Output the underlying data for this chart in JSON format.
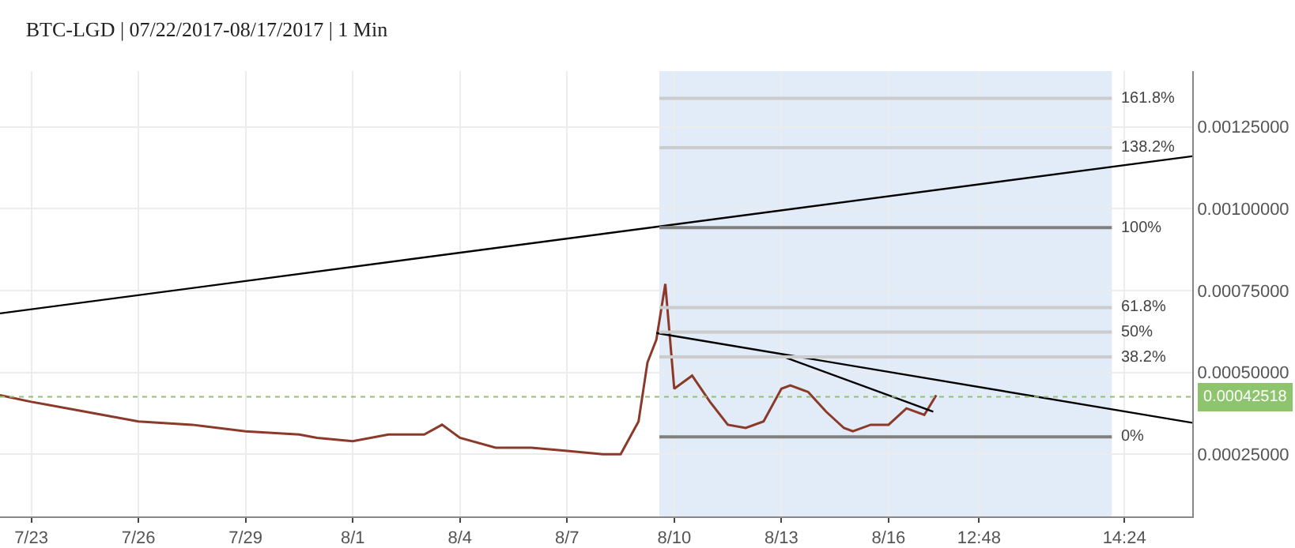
{
  "chart_data": {
    "type": "line",
    "title": "BTC-LGD | 07/22/2017-08/17/2017 | 1 Min",
    "x": [
      "2017-07-22T03:00",
      "2017-07-23",
      "2017-07-24T12:00",
      "2017-07-26",
      "2017-07-27T12:00",
      "2017-07-29",
      "2017-07-30T12:00",
      "2017-07-31",
      "2017-08-01",
      "2017-08-02",
      "2017-08-03",
      "2017-08-03T12:00",
      "2017-08-04",
      "2017-08-05",
      "2017-08-06",
      "2017-08-07",
      "2017-08-08",
      "2017-08-08T12:00",
      "2017-08-09T00:00",
      "2017-08-09T06:00",
      "2017-08-09T12:00",
      "2017-08-09T18:00",
      "2017-08-10T00:00",
      "2017-08-10T12:00",
      "2017-08-11",
      "2017-08-11T12:00",
      "2017-08-12",
      "2017-08-12T12:00",
      "2017-08-13",
      "2017-08-13T06:00",
      "2017-08-13T18:00",
      "2017-08-14T06:00",
      "2017-08-14T18:00",
      "2017-08-15",
      "2017-08-15T12:00",
      "2017-08-16",
      "2017-08-16T12:00",
      "2017-08-17",
      "2017-08-17T08:00"
    ],
    "series": [
      {
        "color": "#8b3a2a",
        "values": [
          0.00043,
          0.00041,
          0.00038,
          0.00035,
          0.00034,
          0.00032,
          0.00031,
          0.0003,
          0.00029,
          0.00031,
          0.00031,
          0.00034,
          0.0003,
          0.00027,
          0.00027,
          0.00026,
          0.00025,
          0.00025,
          0.00035,
          0.00053,
          0.0006,
          0.00077,
          0.00045,
          0.00049,
          0.00041,
          0.00034,
          0.00033,
          0.00035,
          0.00045,
          0.00046,
          0.00044,
          0.00038,
          0.00033,
          0.00032,
          0.00034,
          0.00034,
          0.00039,
          0.00037,
          0.00043
        ]
      },
      {
        "color": "#000000",
        "x": [
          "2017-07-22T03:00",
          "2017-08-24T12:00"
        ],
        "values": [
          0.00068,
          0.00116
        ]
      },
      {
        "color": "#000000",
        "x": [
          "2017-08-09T12:00",
          "2017-08-24T12:00"
        ],
        "values": [
          0.00062,
          0.000346
        ]
      },
      {
        "color": "#000000",
        "x": [
          "2017-08-13",
          "2017-08-17T06:00"
        ],
        "values": [
          0.00055,
          0.00038
        ]
      }
    ],
    "xlim": [
      "2017-07-22T03:00",
      "2017-08-24T12:00"
    ],
    "xticks": [
      {
        "value": "2017-07-23",
        "label": "7/23"
      },
      {
        "value": "2017-07-26",
        "label": "7/26"
      },
      {
        "value": "2017-07-29",
        "label": "7/29"
      },
      {
        "value": "2017-08-01",
        "label": "8/1"
      },
      {
        "value": "2017-08-04",
        "label": "8/4"
      },
      {
        "value": "2017-08-07",
        "label": "8/7"
      },
      {
        "value": "2017-08-10",
        "label": "8/10"
      },
      {
        "value": "2017-08-13",
        "label": "8/13"
      },
      {
        "value": "2017-08-16",
        "label": "8/16"
      },
      {
        "value": "2017-08-18T12:48",
        "label": "12:48"
      },
      {
        "value": "2017-08-22T14:24",
        "label": "14:24"
      }
    ],
    "ylim": [
      6e-05,
      0.00142
    ],
    "yticks": [
      {
        "value": 0.00025,
        "label": "0.00025000"
      },
      {
        "value": 0.0005,
        "label": "0.00050000"
      },
      {
        "value": 0.00075,
        "label": "0.00075000"
      },
      {
        "value": 0.001,
        "label": "0.00100000"
      },
      {
        "value": 0.00125,
        "label": "0.00125000"
      }
    ],
    "bands": [
      {
        "axis": "x",
        "from": "2017-08-09T14:00",
        "to": "2017-08-22T06:00",
        "color": "#e2ebf8"
      }
    ],
    "ref_lines": [
      {
        "axis": "y",
        "value": 0.001337,
        "color": "#cccccc"
      },
      {
        "axis": "y",
        "value": 0.001186,
        "color": "#cccccc"
      },
      {
        "axis": "y",
        "value": 0.000942,
        "color": "#808080"
      },
      {
        "axis": "y",
        "value": 0.000698,
        "color": "#cccccc"
      },
      {
        "axis": "y",
        "value": 0.000623,
        "color": "#cccccc"
      },
      {
        "axis": "y",
        "value": 0.000547,
        "color": "#cccccc"
      },
      {
        "axis": "y",
        "value": 0.000303,
        "color": "#808080"
      },
      {
        "axis": "y",
        "value": 0.00042518,
        "label": "0.00042518",
        "color": "#8fc46e",
        "line_style": "dotted"
      }
    ],
    "annotations": [
      "161.8%",
      "138.2%",
      "100%",
      "61.8%",
      "50%",
      "38.2%",
      "0%"
    ],
    "grid": true,
    "marker": "none",
    "line_style": "solid"
  }
}
